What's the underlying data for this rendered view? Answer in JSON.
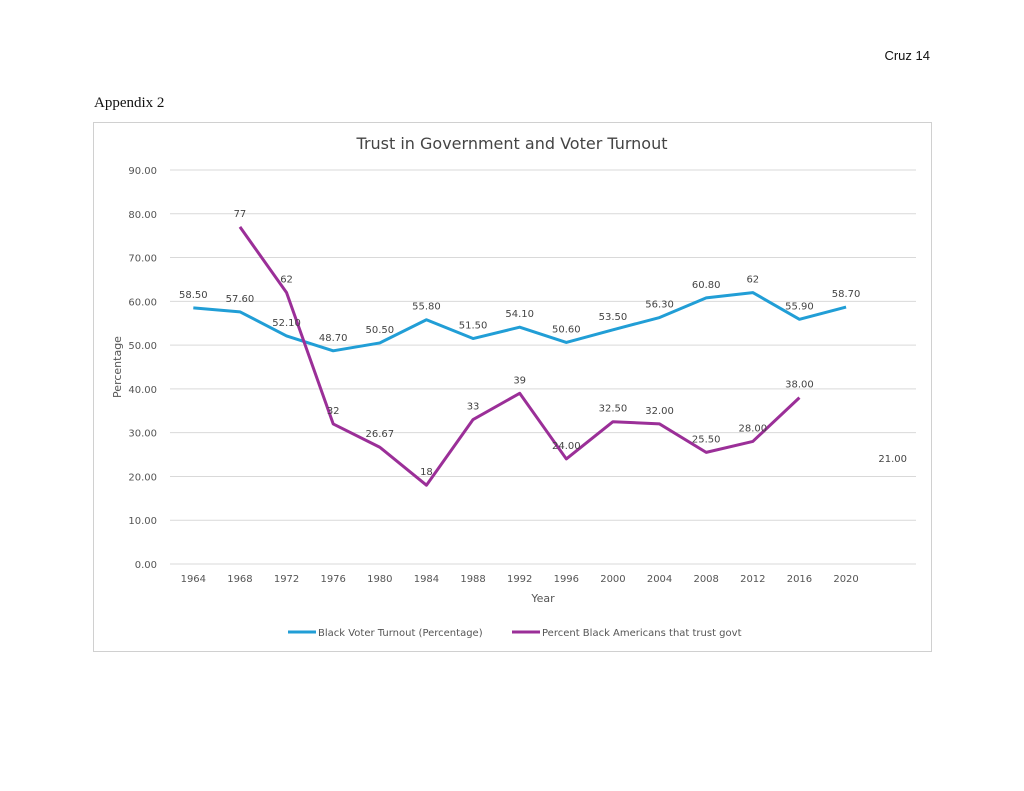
{
  "header": {
    "page_label": "Cruz 14"
  },
  "section_title": "Appendix 2",
  "chart_data": {
    "type": "line",
    "title": "Trust in Government and Voter Turnout",
    "xlabel": "Year",
    "ylabel": "Percentage",
    "ylim": [
      0,
      90
    ],
    "yticks": [
      "0.00",
      "10.00",
      "20.00",
      "30.00",
      "40.00",
      "50.00",
      "60.00",
      "70.00",
      "80.00",
      "90.00"
    ],
    "categories": [
      "1964",
      "1968",
      "1972",
      "1976",
      "1980",
      "1984",
      "1988",
      "1992",
      "1996",
      "2000",
      "2004",
      "2008",
      "2012",
      "2016",
      "2020",
      ""
    ],
    "grid": true,
    "legend_position": "bottom",
    "series": [
      {
        "name": "Black Voter Turnout (Percentage)",
        "color": "#219ed6",
        "values": [
          58.5,
          57.6,
          52.1,
          48.7,
          50.5,
          55.8,
          51.5,
          54.1,
          50.6,
          53.5,
          56.3,
          60.8,
          62,
          55.9,
          58.7,
          null
        ],
        "labels": [
          "58.50",
          "57.60",
          "52.10",
          "48.70",
          "50.50",
          "55.80",
          "51.50",
          "54.10",
          "50.60",
          "53.50",
          "56.30",
          "60.80",
          "62",
          "55.90",
          "58.70",
          ""
        ]
      },
      {
        "name": "Percent Black Americans that trust govt",
        "color": "#9b2f98",
        "values": [
          null,
          77,
          62,
          32,
          26.67,
          18,
          33,
          39,
          24,
          32.5,
          32,
          25.5,
          28,
          38,
          null,
          21
        ],
        "labels": [
          "",
          "77",
          "62",
          "32",
          "26.67",
          "18",
          "33",
          "39",
          "24.00",
          "32.50",
          "32.00",
          "25.50",
          "28.00",
          "38.00",
          "",
          "21.00"
        ]
      }
    ]
  }
}
